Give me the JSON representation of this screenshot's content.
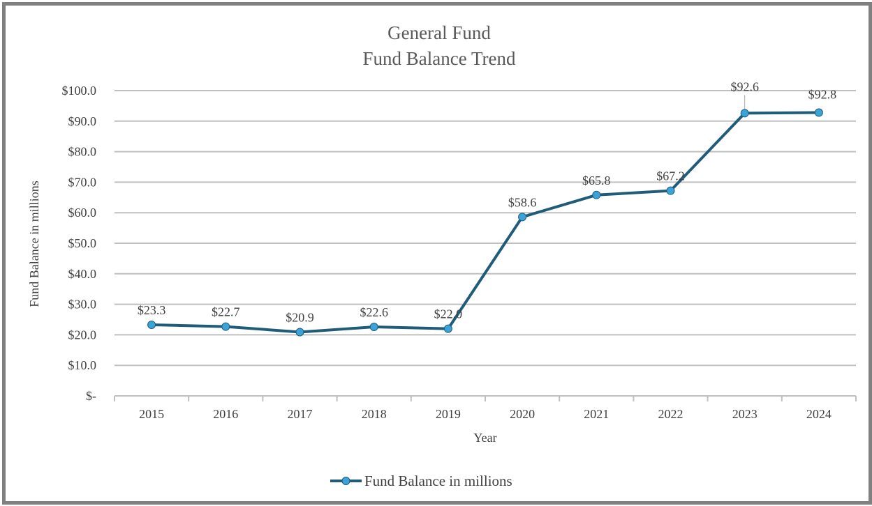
{
  "chart_data": {
    "type": "line",
    "title": [
      "General Fund",
      "Fund Balance Trend"
    ],
    "xlabel": "Year",
    "ylabel": "Fund Balance in millions",
    "categories": [
      "2015",
      "2016",
      "2017",
      "2018",
      "2019",
      "2020",
      "2021",
      "2022",
      "2023",
      "2024"
    ],
    "series": [
      {
        "name": "Fund Balance in millions",
        "values": [
          23.3,
          22.7,
          20.9,
          22.6,
          22.0,
          58.6,
          65.8,
          67.2,
          92.6,
          92.8
        ],
        "labels": [
          "$23.3",
          "$22.7",
          "$20.9",
          "$22.6",
          "$22.0",
          "$58.6",
          "$65.8",
          "$67.2",
          "$92.6",
          "$92.8"
        ]
      }
    ],
    "ylim": [
      0,
      100
    ],
    "yticks": [
      0,
      10,
      20,
      30,
      40,
      50,
      60,
      70,
      80,
      90,
      100
    ],
    "ytick_labels": [
      "$-",
      "$10.0",
      "$20.0",
      "$30.0",
      "$40.0",
      "$50.0",
      "$60.0",
      "$70.0",
      "$80.0",
      "$90.0",
      "$100.0"
    ],
    "grid": true,
    "legend_position": "bottom",
    "colors": {
      "line": "#1f5c7a",
      "marker": "#3aa3d8",
      "grid": "#bfbfbf",
      "frame": "#808080"
    }
  }
}
